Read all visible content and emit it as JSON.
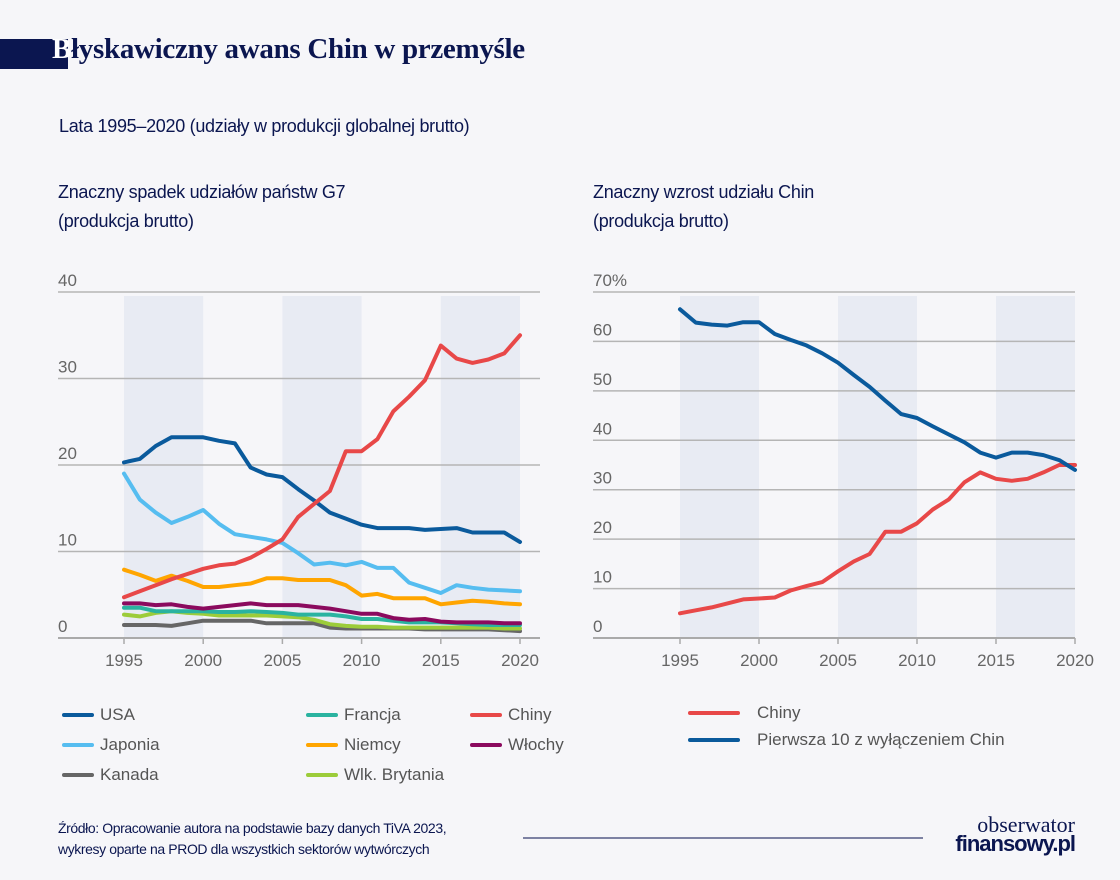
{
  "title": {
    "first_letter": "B",
    "rest": "łyskawiczny awans Chin w przemyśle"
  },
  "subtitle": "Lata 1995–2020 (udziały w produkcji globalnej brutto)",
  "colors": {
    "navy": "#0b1650",
    "background": "#f6f6f9",
    "band": "#e8ebf3"
  },
  "chart_data": [
    {
      "type": "line",
      "title_line1": "Znaczny spadek udziałów państw G7",
      "title_line2": "(produkcja brutto)",
      "ylim": [
        0,
        40
      ],
      "yticks": [
        "0",
        "10",
        "20",
        "30",
        "40"
      ],
      "xlim": [
        1995,
        2020
      ],
      "xticks": [
        "1995",
        "2000",
        "2005",
        "2010",
        "2015",
        "2020"
      ],
      "shaded_periods": [
        [
          1995,
          2000
        ],
        [
          2005,
          2010
        ],
        [
          2015,
          2020
        ]
      ],
      "grid": true,
      "legend_placement": "bottom",
      "x": [
        1995,
        1996,
        1997,
        1998,
        1999,
        2000,
        2001,
        2002,
        2003,
        2004,
        2005,
        2006,
        2007,
        2008,
        2009,
        2010,
        2011,
        2012,
        2013,
        2014,
        2015,
        2016,
        2017,
        2018,
        2019,
        2020
      ],
      "series": [
        {
          "name": "Kanada",
          "color": "#666666",
          "values": [
            1.5,
            1.5,
            1.5,
            1.4,
            1.7,
            2.0,
            2.0,
            2.0,
            2.0,
            1.7,
            1.7,
            1.7,
            1.7,
            1.2,
            1.1,
            1.1,
            1.1,
            1.1,
            1.1,
            1.0,
            1.0,
            1.0,
            1.0,
            1.0,
            0.9,
            0.8
          ]
        },
        {
          "name": "Wlk. Brytania",
          "color": "#9ccc3a",
          "values": [
            2.7,
            2.5,
            2.9,
            3.1,
            2.9,
            2.8,
            2.6,
            2.6,
            2.6,
            2.6,
            2.5,
            2.4,
            2.1,
            1.6,
            1.4,
            1.3,
            1.3,
            1.2,
            1.2,
            1.2,
            1.2,
            1.2,
            1.2,
            1.2,
            1.1,
            1.1
          ]
        },
        {
          "name": "Francja",
          "color": "#2ab3a0",
          "values": [
            3.5,
            3.5,
            3.1,
            3.1,
            3.1,
            3.1,
            3.0,
            3.0,
            3.1,
            3.0,
            2.9,
            2.7,
            2.7,
            2.7,
            2.5,
            2.2,
            2.2,
            2.0,
            1.8,
            1.8,
            1.8,
            1.7,
            1.6,
            1.5,
            1.5,
            1.5
          ]
        },
        {
          "name": "Włochy",
          "color": "#8b0a5e",
          "values": [
            4.0,
            4.0,
            3.8,
            3.9,
            3.6,
            3.4,
            3.6,
            3.8,
            4.0,
            3.8,
            3.8,
            3.8,
            3.6,
            3.4,
            3.1,
            2.8,
            2.8,
            2.3,
            2.1,
            2.2,
            1.9,
            1.8,
            1.8,
            1.8,
            1.7,
            1.7
          ]
        },
        {
          "name": "Niemcy",
          "color": "#ffa500",
          "values": [
            7.9,
            7.3,
            6.6,
            7.2,
            6.6,
            5.9,
            5.9,
            6.1,
            6.3,
            6.9,
            6.9,
            6.7,
            6.7,
            6.7,
            6.1,
            4.9,
            5.1,
            4.6,
            4.6,
            4.6,
            3.9,
            4.1,
            4.3,
            4.2,
            4.0,
            3.9
          ]
        },
        {
          "name": "Japonia",
          "color": "#56bdf0",
          "values": [
            19.0,
            16.0,
            14.5,
            13.3,
            14.0,
            14.8,
            13.2,
            12.0,
            11.7,
            11.4,
            11.0,
            9.8,
            8.5,
            8.7,
            8.4,
            8.8,
            8.1,
            8.1,
            6.4,
            5.8,
            5.2,
            6.1,
            5.8,
            5.6,
            5.5,
            5.4
          ]
        },
        {
          "name": "USA",
          "color": "#0a5a9c",
          "values": [
            20.3,
            20.7,
            22.2,
            23.2,
            23.2,
            23.2,
            22.8,
            22.5,
            19.7,
            18.9,
            18.6,
            17.2,
            15.9,
            14.5,
            13.8,
            13.1,
            12.7,
            12.7,
            12.7,
            12.5,
            12.6,
            12.7,
            12.2,
            12.2,
            12.2,
            11.1
          ]
        },
        {
          "name": "Chiny",
          "color": "#e84848",
          "values": [
            4.7,
            5.4,
            6.1,
            6.8,
            7.4,
            8.0,
            8.4,
            8.6,
            9.3,
            10.3,
            11.4,
            14.0,
            15.5,
            17.0,
            21.6,
            21.6,
            23.0,
            26.2,
            27.9,
            29.8,
            33.8,
            32.3,
            31.8,
            32.2,
            32.9,
            35.0
          ]
        }
      ],
      "legend_order": [
        "USA",
        "Francja",
        "Chiny",
        "Japonia",
        "Niemcy",
        "Włochy",
        "Kanada",
        "Wlk. Brytania"
      ]
    },
    {
      "type": "line",
      "title_line1": "Znaczny wzrost udziału Chin",
      "title_line2": "(produkcja brutto)",
      "ylim": [
        0,
        70
      ],
      "yticks": [
        "0",
        "10",
        "20",
        "30",
        "40",
        "50",
        "60",
        "70%"
      ],
      "xlim": [
        1995,
        2020
      ],
      "xticks": [
        "1995",
        "2000",
        "2005",
        "2010",
        "2015",
        "2020"
      ],
      "shaded_periods": [
        [
          1995,
          2000
        ],
        [
          2005,
          2010
        ],
        [
          2015,
          2020
        ]
      ],
      "grid": true,
      "legend_placement": "bottom",
      "x": [
        1995,
        1996,
        1997,
        1998,
        1999,
        2000,
        2001,
        2002,
        2003,
        2004,
        2005,
        2006,
        2007,
        2008,
        2009,
        2010,
        2011,
        2012,
        2013,
        2014,
        2015,
        2016,
        2017,
        2018,
        2019,
        2020
      ],
      "series": [
        {
          "name": "Chiny",
          "color": "#e84848",
          "values": [
            5.0,
            5.6,
            6.2,
            7.0,
            7.8,
            8.0,
            8.2,
            9.6,
            10.5,
            11.3,
            13.5,
            15.5,
            17.0,
            21.5,
            21.5,
            23.2,
            26.0,
            28.0,
            31.5,
            33.5,
            32.2,
            31.8,
            32.2,
            33.5,
            35.0,
            35.0
          ]
        },
        {
          "name": "Pierwsza 10 z wyłączeniem Chin",
          "color": "#0a5a9c",
          "values": [
            66.5,
            63.8,
            63.4,
            63.2,
            63.9,
            63.9,
            61.5,
            60.3,
            59.2,
            57.6,
            55.7,
            53.2,
            50.8,
            48.0,
            45.3,
            44.5,
            42.8,
            41.2,
            39.6,
            37.5,
            36.5,
            37.5,
            37.5,
            37.0,
            36.0,
            34.0
          ]
        }
      ],
      "legend_order": [
        "Chiny",
        "Pierwsza 10 z wyłączeniem Chin"
      ]
    }
  ],
  "footer": {
    "source_line1": "Źródło: Opracowanie autora na podstawie bazy danych TiVA 2023,",
    "source_line2": "wykresy oparte na PROD dla wszystkich sektorów wytwórczych",
    "logo_line1": "obserwator",
    "logo_line2": "finansowy.pl"
  }
}
